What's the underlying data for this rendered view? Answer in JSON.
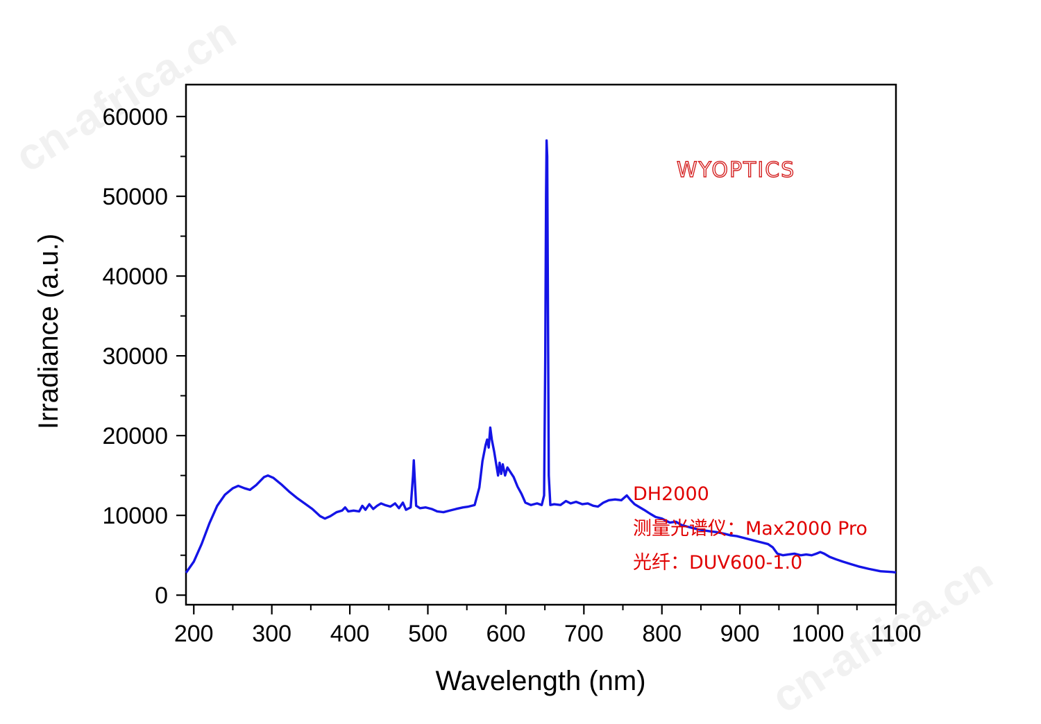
{
  "watermark": {
    "text": "cn-africa.cn"
  },
  "chart_data": {
    "type": "line",
    "title": "",
    "xlabel": "Wavelength (nm)",
    "ylabel": "Irradiance (a.u.)",
    "xlim": [
      190,
      1100
    ],
    "ylim": [
      -1200,
      64000
    ],
    "x_ticks": [
      200,
      300,
      400,
      500,
      600,
      700,
      800,
      900,
      1000,
      1100
    ],
    "y_ticks": [
      0,
      10000,
      20000,
      30000,
      40000,
      50000,
      60000
    ],
    "grid": false,
    "legend": "none",
    "series": [
      {
        "color": "#1414e6",
        "points": [
          [
            190,
            2800
          ],
          [
            200,
            4200
          ],
          [
            210,
            6400
          ],
          [
            220,
            9000
          ],
          [
            230,
            11200
          ],
          [
            240,
            12600
          ],
          [
            250,
            13400
          ],
          [
            257,
            13700
          ],
          [
            265,
            13400
          ],
          [
            272,
            13200
          ],
          [
            280,
            13800
          ],
          [
            290,
            14800
          ],
          [
            295,
            15000
          ],
          [
            302,
            14700
          ],
          [
            312,
            13900
          ],
          [
            322,
            13000
          ],
          [
            332,
            12200
          ],
          [
            342,
            11500
          ],
          [
            352,
            10800
          ],
          [
            362,
            9900
          ],
          [
            368,
            9600
          ],
          [
            375,
            9900
          ],
          [
            383,
            10400
          ],
          [
            390,
            10600
          ],
          [
            394,
            11000
          ],
          [
            398,
            10500
          ],
          [
            405,
            10600
          ],
          [
            412,
            10500
          ],
          [
            416,
            11200
          ],
          [
            420,
            10700
          ],
          [
            425,
            11400
          ],
          [
            430,
            10800
          ],
          [
            435,
            11200
          ],
          [
            440,
            11500
          ],
          [
            445,
            11300
          ],
          [
            452,
            11100
          ],
          [
            458,
            11500
          ],
          [
            463,
            10900
          ],
          [
            468,
            11600
          ],
          [
            472,
            10700
          ],
          [
            478,
            11000
          ],
          [
            481,
            15000
          ],
          [
            482,
            16900
          ],
          [
            483,
            15000
          ],
          [
            485,
            11200
          ],
          [
            490,
            10900
          ],
          [
            497,
            11000
          ],
          [
            505,
            10800
          ],
          [
            512,
            10500
          ],
          [
            520,
            10400
          ],
          [
            528,
            10600
          ],
          [
            536,
            10800
          ],
          [
            545,
            11000
          ],
          [
            552,
            11100
          ],
          [
            560,
            11300
          ],
          [
            566,
            13500
          ],
          [
            570,
            16800
          ],
          [
            574,
            18800
          ],
          [
            576,
            19500
          ],
          [
            578,
            18500
          ],
          [
            580,
            21000
          ],
          [
            582,
            19500
          ],
          [
            585,
            18000
          ],
          [
            588,
            16200
          ],
          [
            590,
            15000
          ],
          [
            592,
            16600
          ],
          [
            594,
            15200
          ],
          [
            596,
            16400
          ],
          [
            599,
            15000
          ],
          [
            602,
            16000
          ],
          [
            606,
            15400
          ],
          [
            610,
            14800
          ],
          [
            615,
            13600
          ],
          [
            620,
            12700
          ],
          [
            625,
            11600
          ],
          [
            632,
            11300
          ],
          [
            640,
            11500
          ],
          [
            646,
            11300
          ],
          [
            649,
            12500
          ],
          [
            650.5,
            30000
          ],
          [
            651.5,
            50000
          ],
          [
            652.2,
            57000
          ],
          [
            653,
            55000
          ],
          [
            654,
            35000
          ],
          [
            655,
            15000
          ],
          [
            657,
            11300
          ],
          [
            662,
            11400
          ],
          [
            670,
            11300
          ],
          [
            677,
            11800
          ],
          [
            683,
            11500
          ],
          [
            690,
            11700
          ],
          [
            698,
            11400
          ],
          [
            705,
            11500
          ],
          [
            712,
            11200
          ],
          [
            718,
            11100
          ],
          [
            725,
            11600
          ],
          [
            732,
            11900
          ],
          [
            740,
            12000
          ],
          [
            748,
            11900
          ],
          [
            755,
            12500
          ],
          [
            760,
            11900
          ],
          [
            765,
            11400
          ],
          [
            770,
            11100
          ],
          [
            777,
            10700
          ],
          [
            785,
            10200
          ],
          [
            792,
            9800
          ],
          [
            800,
            9600
          ],
          [
            810,
            9100
          ],
          [
            818,
            9200
          ],
          [
            825,
            8800
          ],
          [
            832,
            8600
          ],
          [
            840,
            8400
          ],
          [
            848,
            8200
          ],
          [
            855,
            8100
          ],
          [
            862,
            8000
          ],
          [
            870,
            7900
          ],
          [
            880,
            7700
          ],
          [
            888,
            7500
          ],
          [
            896,
            7400
          ],
          [
            904,
            7200
          ],
          [
            912,
            7000
          ],
          [
            920,
            6800
          ],
          [
            928,
            6600
          ],
          [
            936,
            6400
          ],
          [
            942,
            6000
          ],
          [
            948,
            5200
          ],
          [
            955,
            5000
          ],
          [
            962,
            5100
          ],
          [
            970,
            5200
          ],
          [
            978,
            5000
          ],
          [
            985,
            5100
          ],
          [
            992,
            5000
          ],
          [
            998,
            5200
          ],
          [
            1003,
            5400
          ],
          [
            1008,
            5200
          ],
          [
            1015,
            4800
          ],
          [
            1023,
            4500
          ],
          [
            1032,
            4200
          ],
          [
            1042,
            3900
          ],
          [
            1052,
            3600
          ],
          [
            1065,
            3300
          ],
          [
            1080,
            3000
          ],
          [
            1095,
            2900
          ],
          [
            1100,
            2850
          ]
        ]
      }
    ],
    "annotations": {
      "brand": "WYOPTICS",
      "lines": [
        "DH2000",
        "测量光谱仪：Max2000 Pro",
        "光纤：DUV600-1.0"
      ]
    }
  }
}
